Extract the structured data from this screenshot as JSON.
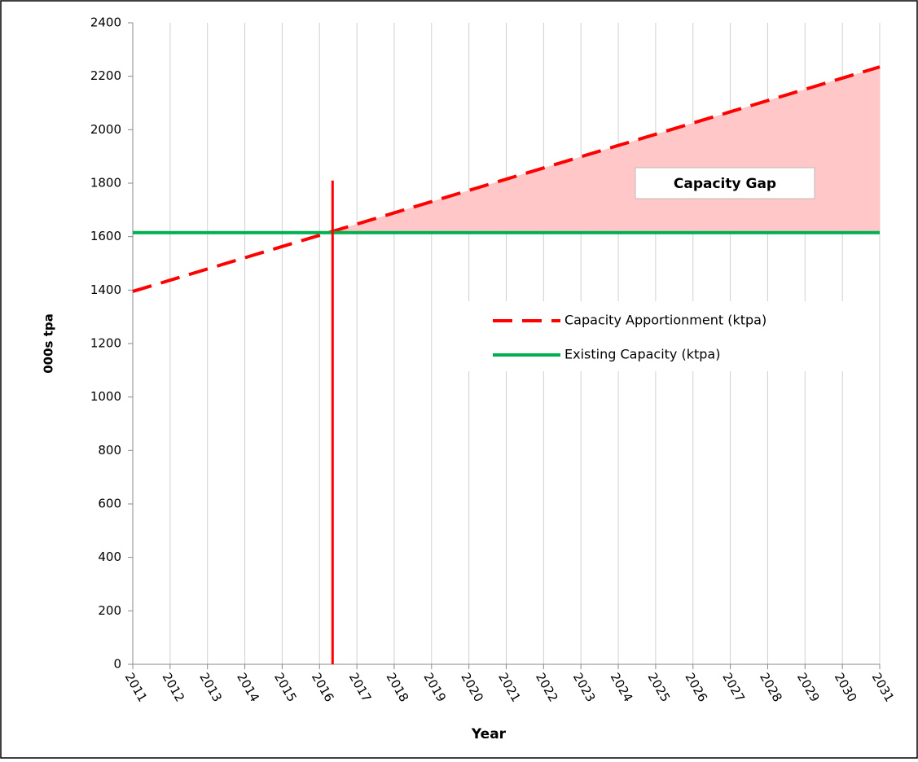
{
  "chart_data": {
    "type": "line",
    "x": [
      2011,
      2012,
      2013,
      2014,
      2015,
      2016,
      2017,
      2018,
      2019,
      2020,
      2021,
      2022,
      2023,
      2024,
      2025,
      2026,
      2027,
      2028,
      2029,
      2030,
      2031
    ],
    "series": [
      {
        "name": "Capacity Apportionment  (ktpa)",
        "color": "#ff0000",
        "dash": true,
        "values": [
          1395,
          1437,
          1479,
          1521,
          1563,
          1605,
          1647,
          1689,
          1731,
          1773,
          1815,
          1857,
          1899,
          1941,
          1983,
          2025,
          2067,
          2109,
          2151,
          2193,
          2235
        ]
      },
      {
        "name": "Existing Capacity (ktpa)",
        "color": "#00b050",
        "dash": false,
        "values": [
          1615,
          1615,
          1615,
          1615,
          1615,
          1615,
          1615,
          1615,
          1615,
          1615,
          1615,
          1615,
          1615,
          1615,
          1615,
          1615,
          1615,
          1615,
          1615,
          1615,
          1615
        ]
      }
    ],
    "gap_fill_color": "#ffc7c7",
    "vertical_line": {
      "x": 2016.35,
      "top": 1810,
      "color": "#ff0000"
    },
    "annotation": "Capacity Gap",
    "xlabel": "Year",
    "ylabel": "000s tpa",
    "xlim": [
      2011,
      2031
    ],
    "xticks": [
      2011,
      2012,
      2013,
      2014,
      2015,
      2016,
      2017,
      2018,
      2019,
      2020,
      2021,
      2022,
      2023,
      2024,
      2025,
      2026,
      2027,
      2028,
      2029,
      2030,
      2031
    ],
    "ylim": [
      0,
      2400
    ],
    "yticks": [
      0,
      200,
      400,
      600,
      800,
      1000,
      1200,
      1400,
      1600,
      1800,
      2000,
      2200,
      2400
    ],
    "grid_x": true,
    "legend": "right"
  }
}
